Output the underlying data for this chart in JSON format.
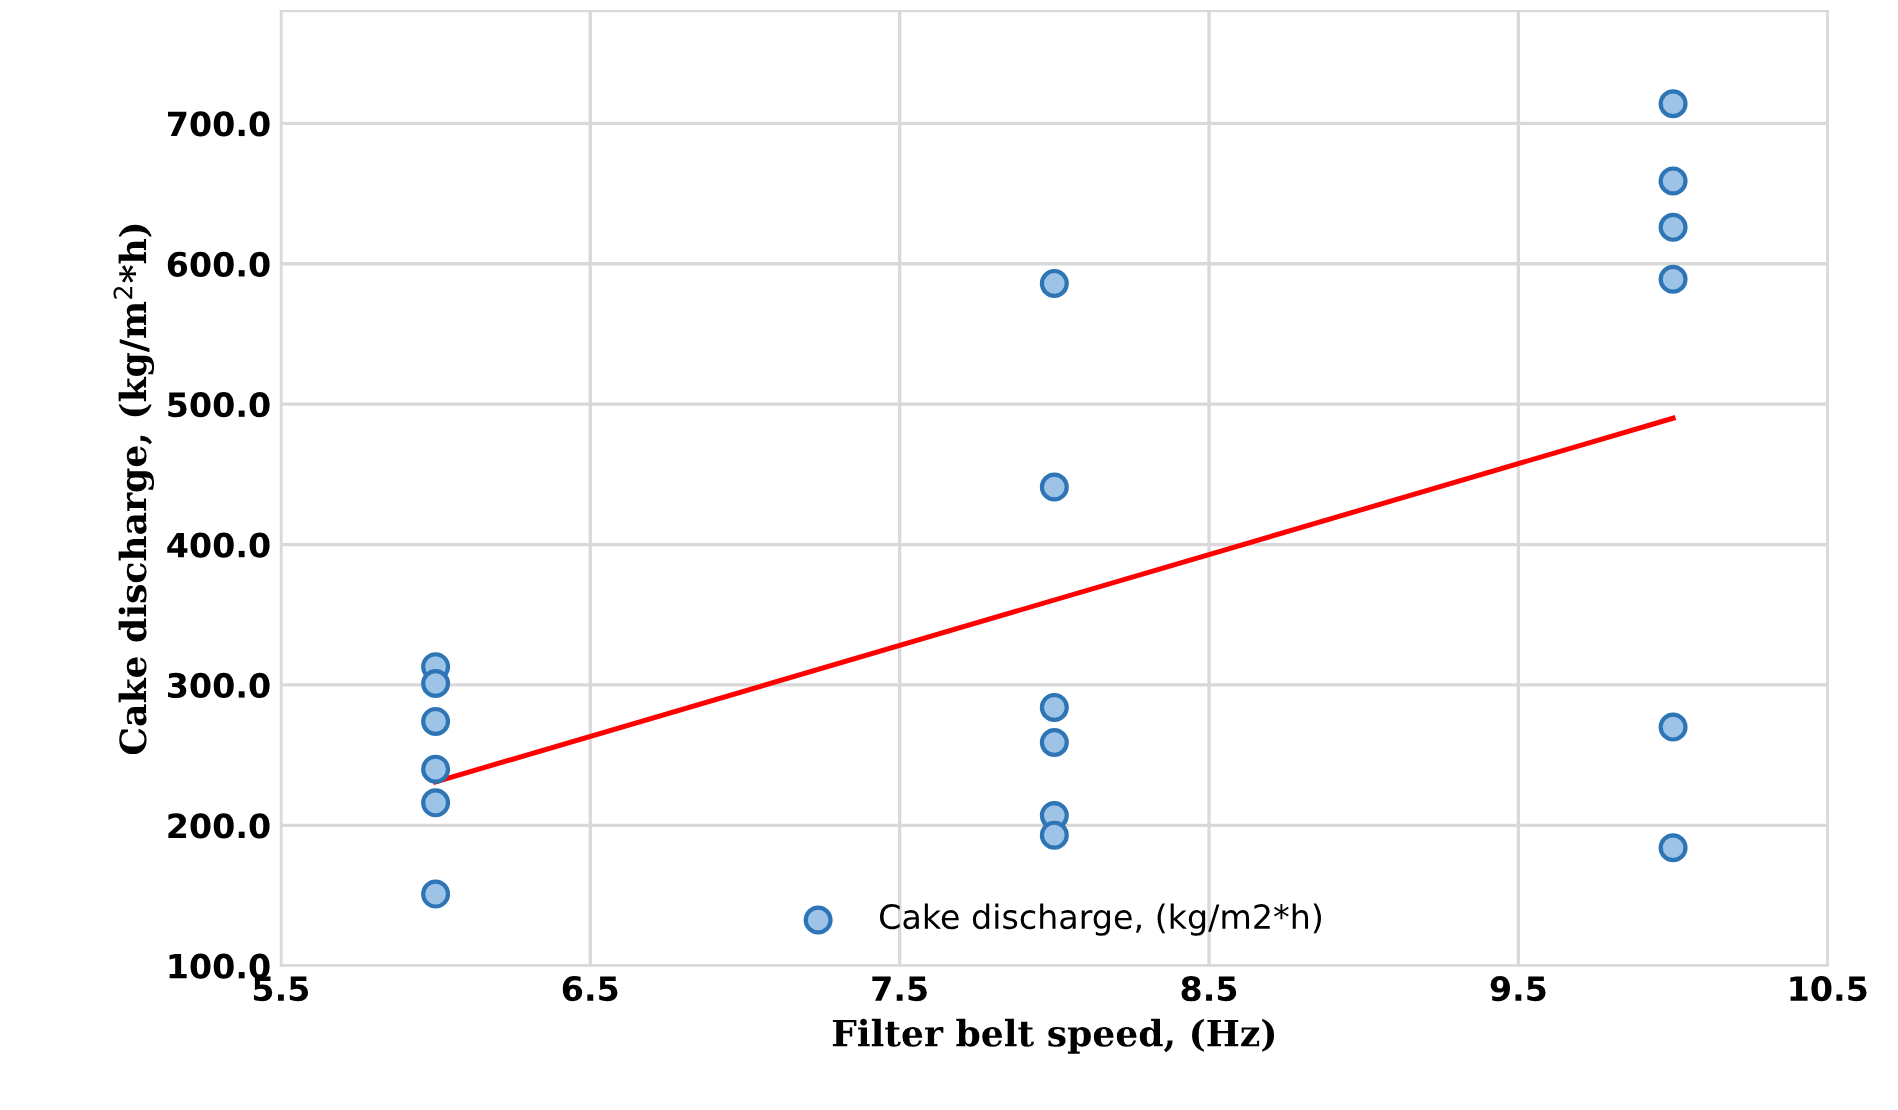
{
  "chart_data": {
    "type": "scatter",
    "xlabel": "Filter belt speed, (Hz)",
    "ylabel": "Cake discharge, (kg/m$^{2}$*h)",
    "xlim": [
      5.5,
      10.5
    ],
    "xticks": [
      5.5,
      6.5,
      7.5,
      8.5,
      9.5,
      10.5
    ],
    "ylim": [
      100,
      780
    ],
    "yticks": [
      {
        "value": 100,
        "label": "100.0"
      },
      {
        "value": 200,
        "label": "200.0"
      },
      {
        "value": 300,
        "label": "300.0"
      },
      {
        "value": 400,
        "label": "400.0"
      },
      {
        "value": 500,
        "label": "500.0"
      },
      {
        "value": 600,
        "label": "600.0"
      },
      {
        "value": 700,
        "label": "700.0"
      }
    ],
    "grid": true,
    "legend": "bottom",
    "marker": "circle",
    "series": [
      {
        "name": "Cake discharge, (kg/m2*h)",
        "color": "#9dc3e6",
        "x": [
          6,
          6,
          6,
          6,
          6,
          6,
          8,
          8,
          8,
          8,
          8,
          8,
          10,
          10,
          10,
          10,
          10,
          10
        ],
        "values": [
          313,
          301,
          274,
          240,
          216,
          151,
          586,
          441,
          284,
          259,
          207,
          193,
          714,
          659,
          626,
          589,
          270,
          184
        ]
      },
      {
        "type": "line",
        "color": "#ff0000",
        "x": [
          6,
          10
        ],
        "values": [
          231,
          490
        ],
        "line_style": "solid",
        "marker": "none"
      }
    ]
  }
}
